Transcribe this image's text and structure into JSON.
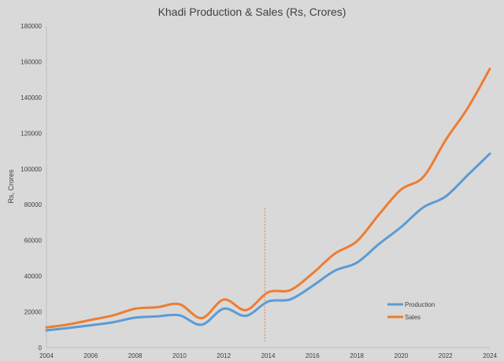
{
  "chart_data": {
    "type": "line",
    "title": "Khadi Production & Sales (Rs, Crores)",
    "xlabel": "",
    "ylabel": "Rs, Crores",
    "x": [
      2004,
      2005,
      2006,
      2007,
      2008,
      2009,
      2010,
      2011,
      2012,
      2013,
      2014,
      2015,
      2016,
      2017,
      2018,
      2019,
      2020,
      2021,
      2022,
      2023,
      2024
    ],
    "x_ticks": [
      "2004",
      "2006",
      "2008",
      "2010",
      "2012",
      "2014",
      "2016",
      "2018",
      "2020",
      "2022",
      "2024"
    ],
    "y_ticks": [
      "0",
      "20000",
      "40000",
      "60000",
      "80000",
      "100000",
      "120000",
      "140000",
      "160000",
      "180000"
    ],
    "xlim": [
      2004,
      2024
    ],
    "ylim": [
      0,
      180000
    ],
    "grid": false,
    "legend_position": "bottom-right",
    "annotations": [
      {
        "type": "vertical-dashed-line",
        "x": 2013.85,
        "y_top": 78000,
        "color": "#ed7d31"
      }
    ],
    "series": [
      {
        "name": "Production",
        "color": "#5b9bd5",
        "values": [
          9700,
          11000,
          12500,
          14200,
          16800,
          17500,
          18100,
          12800,
          21800,
          17800,
          25800,
          27000,
          34500,
          43000,
          47500,
          58000,
          67500,
          78500,
          84500,
          96500,
          108500
        ]
      },
      {
        "name": "Sales",
        "color": "#ed7d31",
        "values": [
          11300,
          13000,
          15500,
          18000,
          21800,
          22600,
          24300,
          16500,
          26900,
          21000,
          31000,
          32200,
          41500,
          52500,
          59500,
          74500,
          88500,
          95500,
          116000,
          134000,
          156000
        ]
      }
    ]
  }
}
